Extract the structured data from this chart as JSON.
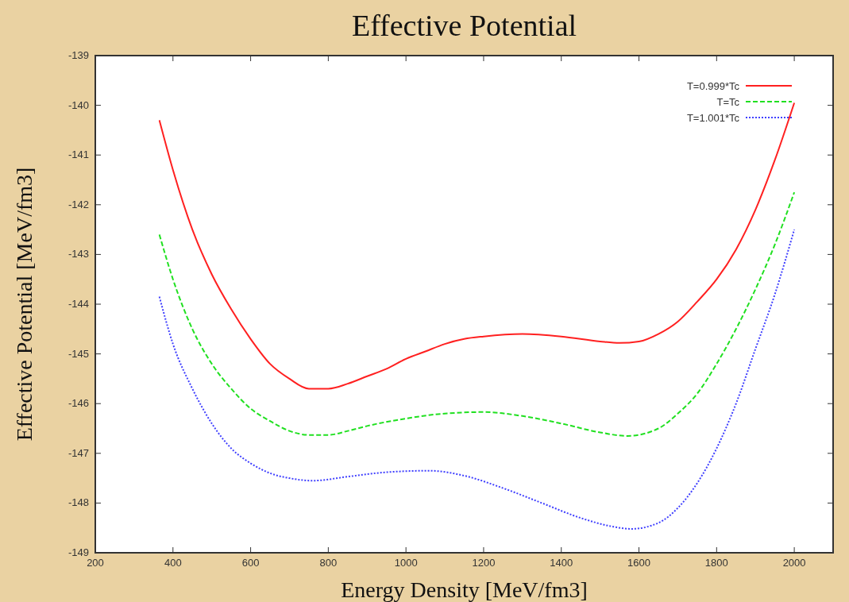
{
  "chart_data": {
    "type": "line",
    "title": "Effective Potential",
    "xlabel": "Energy Density [MeV/fm3]",
    "ylabel": "Effective Potential [MeV/fm3]",
    "xlim": [
      200,
      2100
    ],
    "ylim": [
      -149,
      -139
    ],
    "xticks": [
      200,
      400,
      600,
      800,
      1000,
      1200,
      1400,
      1600,
      1800,
      2000
    ],
    "yticks": [
      -139,
      -140,
      -141,
      -142,
      -143,
      -144,
      -145,
      -146,
      -147,
      -148,
      -149
    ],
    "grid": false,
    "legend": "top right",
    "marker": "none",
    "series": [
      {
        "name": "T=0.999*Tc",
        "color": "#ff2020",
        "line_style": "solid",
        "x": [
          365,
          400,
          450,
          500,
          550,
          600,
          650,
          700,
          750,
          800,
          850,
          900,
          950,
          1000,
          1050,
          1100,
          1150,
          1200,
          1300,
          1400,
          1500,
          1550,
          1600,
          1650,
          1700,
          1750,
          1800,
          1850,
          1900,
          1950,
          2000
        ],
        "values": [
          -140.3,
          -141.3,
          -142.5,
          -143.4,
          -144.1,
          -144.7,
          -145.2,
          -145.5,
          -145.7,
          -145.7,
          -145.6,
          -145.45,
          -145.3,
          -145.1,
          -144.95,
          -144.8,
          -144.7,
          -144.65,
          -144.6,
          -144.65,
          -144.75,
          -144.78,
          -144.75,
          -144.6,
          -144.35,
          -143.95,
          -143.5,
          -142.9,
          -142.1,
          -141.1,
          -139.95
        ]
      },
      {
        "name": "T=Tc",
        "color": "#20e020",
        "line_style": "dashed",
        "x": [
          365,
          400,
          450,
          500,
          550,
          600,
          650,
          700,
          750,
          800,
          850,
          900,
          1000,
          1100,
          1200,
          1300,
          1400,
          1500,
          1570,
          1650,
          1700,
          1750,
          1800,
          1850,
          1900,
          1950,
          2000
        ],
        "values": [
          -142.6,
          -143.5,
          -144.5,
          -145.2,
          -145.7,
          -146.1,
          -146.35,
          -146.55,
          -146.63,
          -146.63,
          -146.55,
          -146.45,
          -146.3,
          -146.2,
          -146.17,
          -146.25,
          -146.4,
          -146.58,
          -146.65,
          -146.5,
          -146.2,
          -145.8,
          -145.2,
          -144.5,
          -143.7,
          -142.8,
          -141.75
        ]
      },
      {
        "name": "T=1.001*Tc",
        "color": "#4040ff",
        "line_style": "dotted",
        "x": [
          365,
          400,
          450,
          500,
          550,
          600,
          650,
          700,
          760,
          850,
          950,
          1060,
          1150,
          1250,
          1350,
          1450,
          1530,
          1580,
          1650,
          1700,
          1750,
          1800,
          1850,
          1900,
          1950,
          2000
        ],
        "values": [
          -143.85,
          -144.8,
          -145.7,
          -146.4,
          -146.9,
          -147.2,
          -147.4,
          -147.5,
          -147.55,
          -147.47,
          -147.38,
          -147.35,
          -147.45,
          -147.7,
          -148.0,
          -148.3,
          -148.47,
          -148.52,
          -148.4,
          -148.1,
          -147.6,
          -146.9,
          -146.0,
          -144.9,
          -143.8,
          -142.5
        ]
      }
    ]
  }
}
